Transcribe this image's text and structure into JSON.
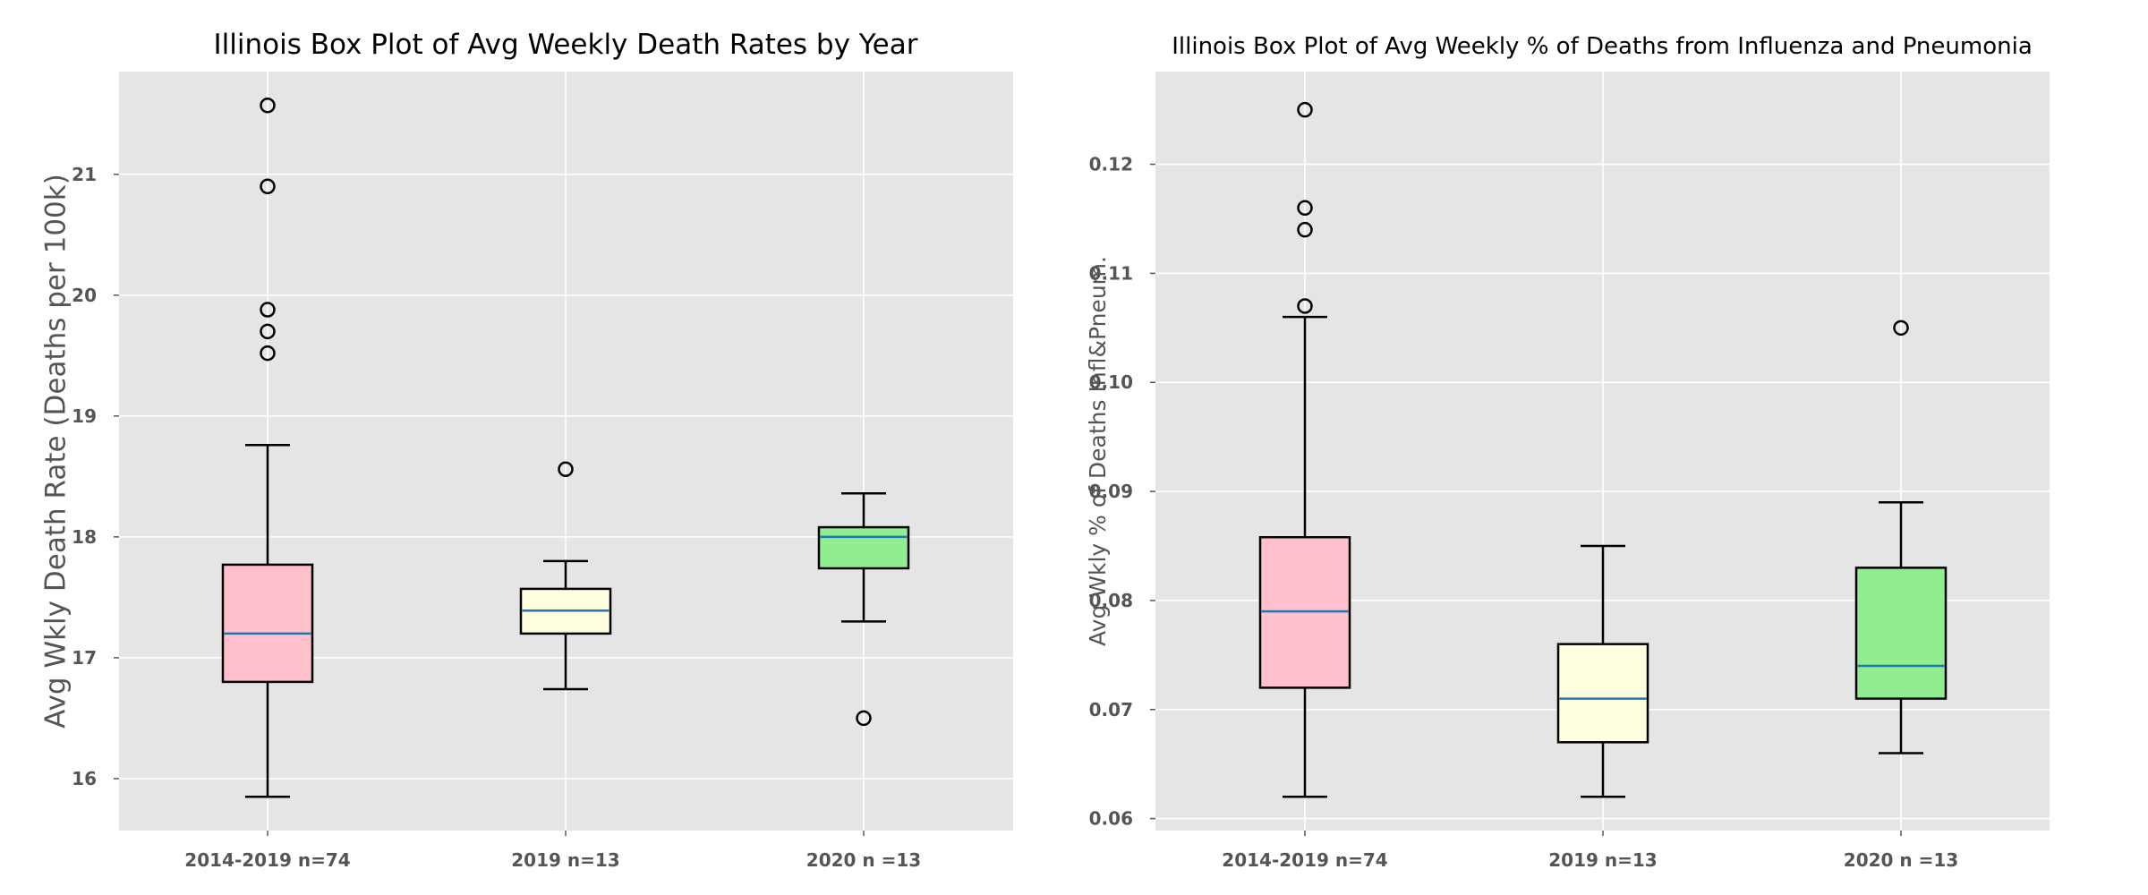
{
  "chart_data": [
    {
      "type": "box",
      "title": "Illinois Box Plot of Avg Weekly Death Rates by Year",
      "xlabel": "",
      "ylabel": "Avg Wkly Death Rate (Deaths per 100k)",
      "ylim": [
        15.57,
        21.85
      ],
      "yticks": [
        16,
        17,
        18,
        19,
        20,
        21
      ],
      "ytick_labels": [
        "16",
        "17",
        "18",
        "19",
        "20",
        "21"
      ],
      "grid": true,
      "categories": [
        "2014-2019 n=74",
        "2019 n=13",
        "2020 n =13"
      ],
      "boxes": [
        {
          "label": "2014-2019 n=74",
          "whisker_low": 15.85,
          "q1": 16.8,
          "median": 17.2,
          "q3": 17.77,
          "whisker_high": 18.76,
          "fliers": [
            19.52,
            19.7,
            19.88,
            20.9,
            21.57
          ],
          "color": "#ffc0cb"
        },
        {
          "label": "2019 n=13",
          "whisker_low": 16.74,
          "q1": 17.2,
          "median": 17.39,
          "q3": 17.57,
          "whisker_high": 17.8,
          "fliers": [
            18.56
          ],
          "color": "#ffffe0"
        },
        {
          "label": "2020 n =13",
          "whisker_low": 17.3,
          "q1": 17.74,
          "median": 18.0,
          "q3": 18.08,
          "whisker_high": 18.36,
          "fliers": [
            16.5
          ],
          "color": "#90ee90"
        }
      ]
    },
    {
      "type": "box",
      "title": "Illinois Box Plot of Avg Weekly % of Deaths from Influenza and Pneumonia",
      "xlabel": "",
      "ylabel": "Avg Wkly % of Deaths Infl&Pneum.",
      "ylim": [
        0.0589,
        0.1285
      ],
      "yticks": [
        0.06,
        0.07,
        0.08,
        0.09,
        0.1,
        0.11,
        0.12
      ],
      "ytick_labels": [
        "0.06",
        "0.07",
        "0.08",
        "0.09",
        "0.10",
        "0.11",
        "0.12"
      ],
      "grid": true,
      "categories": [
        "2014-2019 n=74",
        "2019 n=13",
        "2020 n =13"
      ],
      "boxes": [
        {
          "label": "2014-2019 n=74",
          "whisker_low": 0.062,
          "q1": 0.072,
          "median": 0.079,
          "q3": 0.0858,
          "whisker_high": 0.106,
          "fliers": [
            0.107,
            0.114,
            0.116,
            0.125
          ],
          "color": "#ffc0cb"
        },
        {
          "label": "2019 n=13",
          "whisker_low": 0.062,
          "q1": 0.067,
          "median": 0.071,
          "q3": 0.076,
          "whisker_high": 0.085,
          "fliers": [],
          "color": "#ffffe0"
        },
        {
          "label": "2020 n =13",
          "whisker_low": 0.066,
          "q1": 0.071,
          "median": 0.074,
          "q3": 0.083,
          "whisker_high": 0.089,
          "fliers": [
            0.105
          ],
          "color": "#90ee90"
        }
      ]
    }
  ],
  "style": {
    "plot_background": "#e5e5e5",
    "grid_color": "#ffffff",
    "median_color": "#1f77b4",
    "box_edge": "#000000",
    "tick_color": "#555555"
  }
}
